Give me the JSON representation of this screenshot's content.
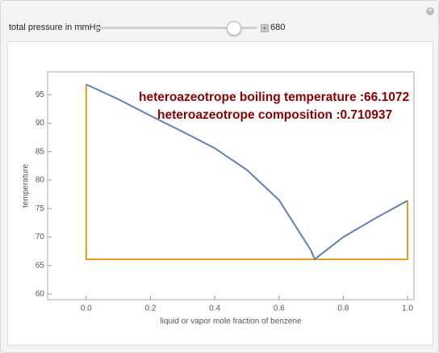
{
  "control": {
    "label": "total pressure in mmHg",
    "value": 680
  },
  "chart_data": {
    "type": "line",
    "annotations": [
      "heteroazeotrope boiling temperature :66.1072",
      "heteroazeotrope composition :0.710937"
    ],
    "x_label": "liquid or vapor mole fraction of benzene",
    "y_label": "temperature",
    "series": [
      {
        "color": "#5e81b5",
        "x": [
          0,
          0.1,
          0.2,
          0.3,
          0.4,
          0.5,
          0.6,
          0.7,
          0.711,
          0.8,
          0.9,
          1.0
        ],
        "values": [
          96.8,
          94.2,
          91.3,
          88.5,
          85.6,
          81.8,
          76.5,
          67.6,
          66.1,
          70.0,
          73.3,
          76.4
        ]
      },
      {
        "color": "#e19c24",
        "x": [
          0,
          0,
          1,
          1
        ],
        "values": [
          96.8,
          66.1,
          66.1,
          76.4
        ]
      }
    ],
    "xlim": [
      -0.12,
      1.02
    ],
    "ylim": [
      59,
      99
    ],
    "xticks": [
      {
        "value": 0,
        "label": "0.0"
      },
      0.2,
      0.4,
      0.6,
      0.8,
      {
        "value": 1,
        "label": "1.0"
      }
    ],
    "yticks": [
      60,
      65,
      70,
      75,
      80,
      85,
      90,
      95
    ]
  }
}
